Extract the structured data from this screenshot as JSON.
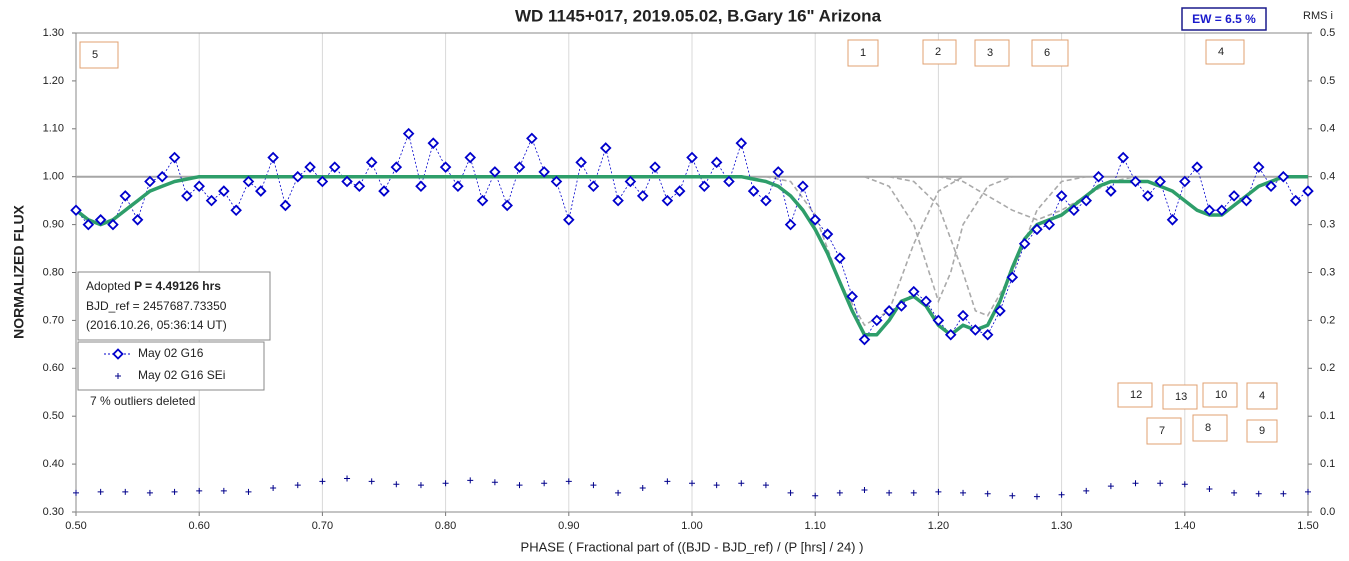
{
  "chart_data": {
    "type": "scatter",
    "title": "WD 1145+017, 2019.05.02, B.Gary 16\" Arizona",
    "xlabel": "PHASE ( Fractional part of ((BJD - BJD_ref) / (P [hrs] / 24) )",
    "ylabel": "NORMALIZED FLUX",
    "y2label": "RMS i",
    "xlim": [
      0.5,
      1.5
    ],
    "ylim": [
      0.3,
      1.3
    ],
    "y2lim": [
      0,
      0.5
    ],
    "grid": true,
    "xticks": [
      {
        "value": 0.5,
        "label": "0.50"
      },
      {
        "value": 0.6,
        "label": "0.60"
      },
      {
        "value": 0.7,
        "label": "0.70"
      },
      {
        "value": 0.8,
        "label": "0.80"
      },
      {
        "value": 0.9,
        "label": "0.90"
      },
      {
        "value": 1.0,
        "label": "1.00"
      },
      {
        "value": 1.1,
        "label": "1.10"
      },
      {
        "value": 1.2,
        "label": "1.20"
      },
      {
        "value": 1.3,
        "label": "1.30"
      },
      {
        "value": 1.4,
        "label": "1.40"
      },
      {
        "value": 1.5,
        "label": "1.50"
      }
    ],
    "yticks": [
      {
        "value": 0.3,
        "label": "0.30"
      },
      {
        "value": 0.4,
        "label": "0.40"
      },
      {
        "value": 0.5,
        "label": "0.50"
      },
      {
        "value": 0.6,
        "label": "0.60"
      },
      {
        "value": 0.7,
        "label": "0.70"
      },
      {
        "value": 0.8,
        "label": "0.80"
      },
      {
        "value": 0.9,
        "label": "0.90"
      },
      {
        "value": 1.0,
        "label": "1.00"
      },
      {
        "value": 1.1,
        "label": "1.10"
      },
      {
        "value": 1.2,
        "label": "1.20"
      },
      {
        "value": 1.3,
        "label": "1.30"
      }
    ],
    "y2ticks": [
      {
        "value": 0,
        "label": "0.0"
      },
      {
        "value": 0.05,
        "label": "0.1"
      },
      0.1,
      {
        "value": 0.15,
        "label": "0.2"
      },
      0.2,
      {
        "value": 0.25,
        "label": "0.3"
      },
      0.3,
      {
        "value": 0.35,
        "label": "0.4"
      },
      0.4,
      {
        "value": 0.45,
        "label": "0.5"
      },
      0.5
    ],
    "x": [
      0.5,
      0.51,
      0.52,
      0.53,
      0.54,
      0.55,
      0.56,
      0.57,
      0.58,
      0.59,
      0.6,
      0.61,
      0.62,
      0.63,
      0.64,
      0.65,
      0.66,
      0.67,
      0.68,
      0.69,
      0.7,
      0.71,
      0.72,
      0.73,
      0.74,
      0.75,
      0.76,
      0.77,
      0.78,
      0.79,
      0.8,
      0.81,
      0.82,
      0.83,
      0.84,
      0.85,
      0.86,
      0.87,
      0.88,
      0.89,
      0.9,
      0.91,
      0.92,
      0.93,
      0.94,
      0.95,
      0.96,
      0.97,
      0.98,
      0.99,
      1.0,
      1.01,
      1.02,
      1.03,
      1.04,
      1.05,
      1.06,
      1.07,
      1.08,
      1.09,
      1.1,
      1.11,
      1.12,
      1.13,
      1.14,
      1.15,
      1.16,
      1.17,
      1.18,
      1.19,
      1.2,
      1.21,
      1.22,
      1.23,
      1.24,
      1.25,
      1.26,
      1.27,
      1.28,
      1.29,
      1.3,
      1.31,
      1.32,
      1.33,
      1.34,
      1.35,
      1.36,
      1.37,
      1.38,
      1.39,
      1.4,
      1.41,
      1.42,
      1.43,
      1.44,
      1.45,
      1.46,
      1.47,
      1.48,
      1.49,
      1.5
    ],
    "series": [
      {
        "name": "May 02 G16",
        "color": "#0000cc",
        "values": [
          0.93,
          0.9,
          0.91,
          0.9,
          0.96,
          0.91,
          0.99,
          1.0,
          1.04,
          0.96,
          0.98,
          0.95,
          0.97,
          0.93,
          0.99,
          0.97,
          1.04,
          0.94,
          1.0,
          1.02,
          0.99,
          1.02,
          0.99,
          0.98,
          1.03,
          0.97,
          1.02,
          1.09,
          0.98,
          1.07,
          1.02,
          0.98,
          1.04,
          0.95,
          1.01,
          0.94,
          1.02,
          1.08,
          1.01,
          0.99,
          0.91,
          1.03,
          0.98,
          1.06,
          0.95,
          0.99,
          0.96,
          1.02,
          0.95,
          0.97,
          1.04,
          0.98,
          1.03,
          0.99,
          1.07,
          0.97,
          0.95,
          1.01,
          0.9,
          0.98,
          0.91,
          0.88,
          0.83,
          0.75,
          0.66,
          0.7,
          0.72,
          0.73,
          0.76,
          0.74,
          0.7,
          0.67,
          0.71,
          0.68,
          0.67,
          0.72,
          0.79,
          0.86,
          0.89,
          0.9,
          0.96,
          0.93,
          0.95,
          1.0,
          0.97,
          1.04,
          0.99,
          0.96,
          0.99,
          0.91,
          0.99,
          1.02,
          0.93,
          0.93,
          0.96,
          0.95,
          1.02,
          0.98,
          1.0,
          0.95,
          0.97
        ]
      },
      {
        "name": "May 02 G16 SEi",
        "color": "#00008b",
        "axis": "y2",
        "x": [
          0.5,
          0.52,
          0.54,
          0.56,
          0.58,
          0.6,
          0.62,
          0.64,
          0.66,
          0.68,
          0.7,
          0.72,
          0.74,
          0.76,
          0.78,
          0.8,
          0.82,
          0.84,
          0.86,
          0.88,
          0.9,
          0.92,
          0.94,
          0.96,
          0.98,
          1.0,
          1.02,
          1.04,
          1.06,
          1.08,
          1.1,
          1.12,
          1.14,
          1.16,
          1.18,
          1.2,
          1.22,
          1.24,
          1.26,
          1.28,
          1.3,
          1.32,
          1.34,
          1.36,
          1.38,
          1.4,
          1.42,
          1.44,
          1.46,
          1.48,
          1.5
        ],
        "values": [
          0.02,
          0.021,
          0.021,
          0.02,
          0.021,
          0.022,
          0.022,
          0.021,
          0.025,
          0.028,
          0.032,
          0.035,
          0.032,
          0.029,
          0.028,
          0.03,
          0.033,
          0.031,
          0.028,
          0.03,
          0.032,
          0.028,
          0.02,
          0.025,
          0.032,
          0.03,
          0.028,
          0.03,
          0.028,
          0.02,
          0.017,
          0.02,
          0.023,
          0.02,
          0.02,
          0.021,
          0.02,
          0.019,
          0.017,
          0.016,
          0.018,
          0.022,
          0.027,
          0.03,
          0.03,
          0.029,
          0.024,
          0.02,
          0.019,
          0.019,
          0.021
        ]
      }
    ],
    "model": {
      "color": "#2e9e6a",
      "values": [
        0.93,
        0.91,
        0.9,
        0.91,
        0.93,
        0.95,
        0.97,
        0.98,
        0.99,
        0.995,
        1.0,
        1.0,
        1.0,
        1.0,
        1.0,
        1.0,
        1.0,
        1.0,
        1.0,
        1.0,
        1.0,
        1.0,
        1.0,
        1.0,
        1.0,
        1.0,
        1.0,
        1.0,
        1.0,
        1.0,
        1.0,
        1.0,
        1.0,
        1.0,
        1.0,
        1.0,
        1.0,
        1.0,
        1.0,
        1.0,
        1.0,
        1.0,
        1.0,
        1.0,
        1.0,
        1.0,
        1.0,
        1.0,
        1.0,
        1.0,
        1.0,
        1.0,
        1.0,
        1.0,
        1.0,
        0.995,
        0.99,
        0.98,
        0.96,
        0.93,
        0.89,
        0.84,
        0.78,
        0.72,
        0.67,
        0.67,
        0.7,
        0.74,
        0.75,
        0.73,
        0.69,
        0.67,
        0.69,
        0.68,
        0.69,
        0.74,
        0.81,
        0.87,
        0.9,
        0.91,
        0.92,
        0.94,
        0.96,
        0.98,
        0.99,
        0.99,
        0.99,
        0.99,
        0.98,
        0.97,
        0.95,
        0.93,
        0.92,
        0.92,
        0.94,
        0.96,
        0.98,
        0.99,
        1.0,
        1.0,
        1.0
      ]
    },
    "components": [
      {
        "x": [
          1.06,
          1.08,
          1.1,
          1.12,
          1.14,
          1.16,
          1.18,
          1.2,
          1.22
        ],
        "values": [
          1.0,
          0.99,
          0.92,
          0.78,
          0.69,
          0.72,
          0.86,
          0.97,
          1.0
        ]
      },
      {
        "x": [
          1.14,
          1.16,
          1.18,
          1.19,
          1.2,
          1.21,
          1.22,
          1.24,
          1.26
        ],
        "values": [
          1.0,
          0.98,
          0.9,
          0.82,
          0.74,
          0.8,
          0.9,
          0.98,
          1.0
        ]
      },
      {
        "x": [
          1.16,
          1.18,
          1.2,
          1.22,
          1.23,
          1.24,
          1.26,
          1.28,
          1.3,
          1.32
        ],
        "values": [
          1.0,
          0.99,
          0.94,
          0.8,
          0.72,
          0.71,
          0.8,
          0.93,
          0.99,
          1.0
        ]
      },
      {
        "x": [
          1.2,
          1.22,
          1.24,
          1.26,
          1.28,
          1.3,
          1.32,
          1.34,
          1.36
        ],
        "values": [
          1.0,
          0.99,
          0.96,
          0.93,
          0.91,
          0.93,
          0.96,
          0.99,
          1.0
        ]
      }
    ],
    "baseline": 1.0,
    "info": {
      "prefix": "Adopted",
      "period": "P = 4.49126 hrs",
      "bjd": "BJD_ref = 2457687.73350",
      "date": "(2016.10.26, 05:36:14 UT)"
    },
    "ew": "EW =  6.5 %",
    "note": "7 % outliers deleted",
    "boxes": [
      "5",
      "1",
      "2",
      "3",
      "6",
      "4",
      "12",
      "13",
      "10",
      "4",
      "7",
      "8",
      "9"
    ]
  }
}
